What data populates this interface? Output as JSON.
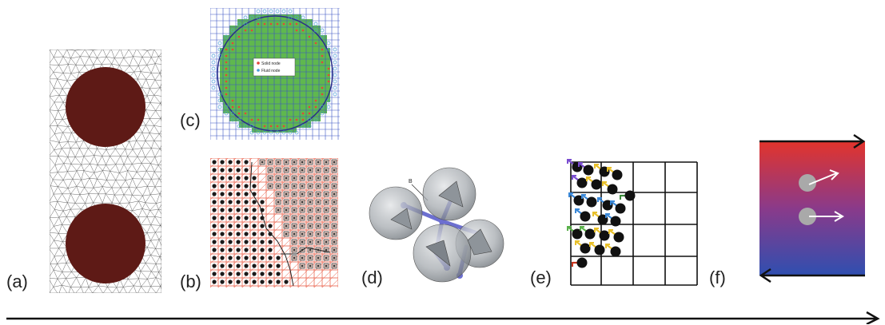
{
  "figure": {
    "panels": [
      {
        "id": "a",
        "label": "(a)"
      },
      {
        "id": "b",
        "label": "(b)"
      },
      {
        "id": "c",
        "label": "(c)"
      },
      {
        "id": "d",
        "label": "(d)"
      },
      {
        "id": "e",
        "label": "(e)"
      },
      {
        "id": "f",
        "label": "(f)"
      }
    ],
    "legend_c": [
      "Solid node",
      "Fluid node"
    ],
    "label_d": "B",
    "colors": {
      "particle": "#5e1a16",
      "fluid_green": "#5fb84e",
      "grid_blue": "#3c55c4",
      "solid_node": "#e2463a",
      "fluid_node": "#4a9ad8",
      "grid_red": "#e8553d",
      "sphere_gray": "#9aa0a6",
      "bond_purple": "#6c6fd0"
    }
  }
}
